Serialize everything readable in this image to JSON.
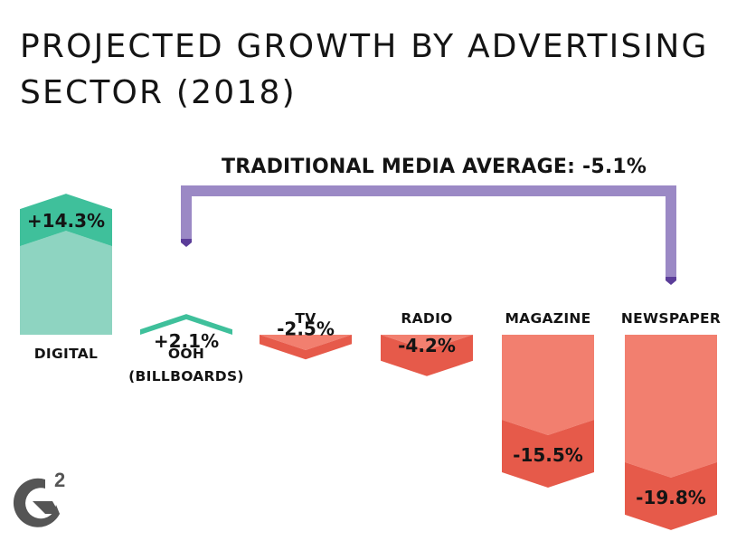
{
  "title_lines": [
    "PROJECTED GROWTH BY ADVERTISING",
    "SECTOR (2018)"
  ],
  "bracket_label": "TRADITIONAL MEDIA AVERAGE: -5.1%",
  "logo_text": "G2",
  "colors": {
    "positive_light": "#8ed4c1",
    "positive_dark": "#3fc09b",
    "negative_light": "#f27f6f",
    "negative_dark": "#e65a4a",
    "bracket": "#9b89c5",
    "bracket_tip": "#5b3d99",
    "text": "#141414",
    "logo": "#555555"
  },
  "chart_data": {
    "type": "bar",
    "title": "PROJECTED GROWTH BY ADVERTISING SECTOR (2018)",
    "xlabel": "",
    "ylabel": "",
    "grid": false,
    "legend": "none",
    "categories": [
      "DIGITAL",
      "OOH (BILLBOARDS)",
      "TV",
      "RADIO",
      "MAGAZINE",
      "NEWSPAPER"
    ],
    "category_lines": [
      [
        "DIGITAL"
      ],
      [
        "OOH",
        "(BILLBOARDS)"
      ],
      [
        "TV"
      ],
      [
        "RADIO"
      ],
      [
        "MAGAZINE"
      ],
      [
        "NEWSPAPER"
      ]
    ],
    "values": [
      14.3,
      2.1,
      -2.5,
      -4.2,
      -15.5,
      -19.8
    ],
    "labels": [
      "+14.3%",
      "+2.1%",
      "-2.5%",
      "-4.2%",
      "-15.5%",
      "-19.8%"
    ],
    "annotations": [
      {
        "text": "TRADITIONAL MEDIA AVERAGE: -5.1%",
        "value": -5.1,
        "spans": [
          "OOH (BILLBOARDS)",
          "NEWSPAPER"
        ]
      }
    ]
  }
}
